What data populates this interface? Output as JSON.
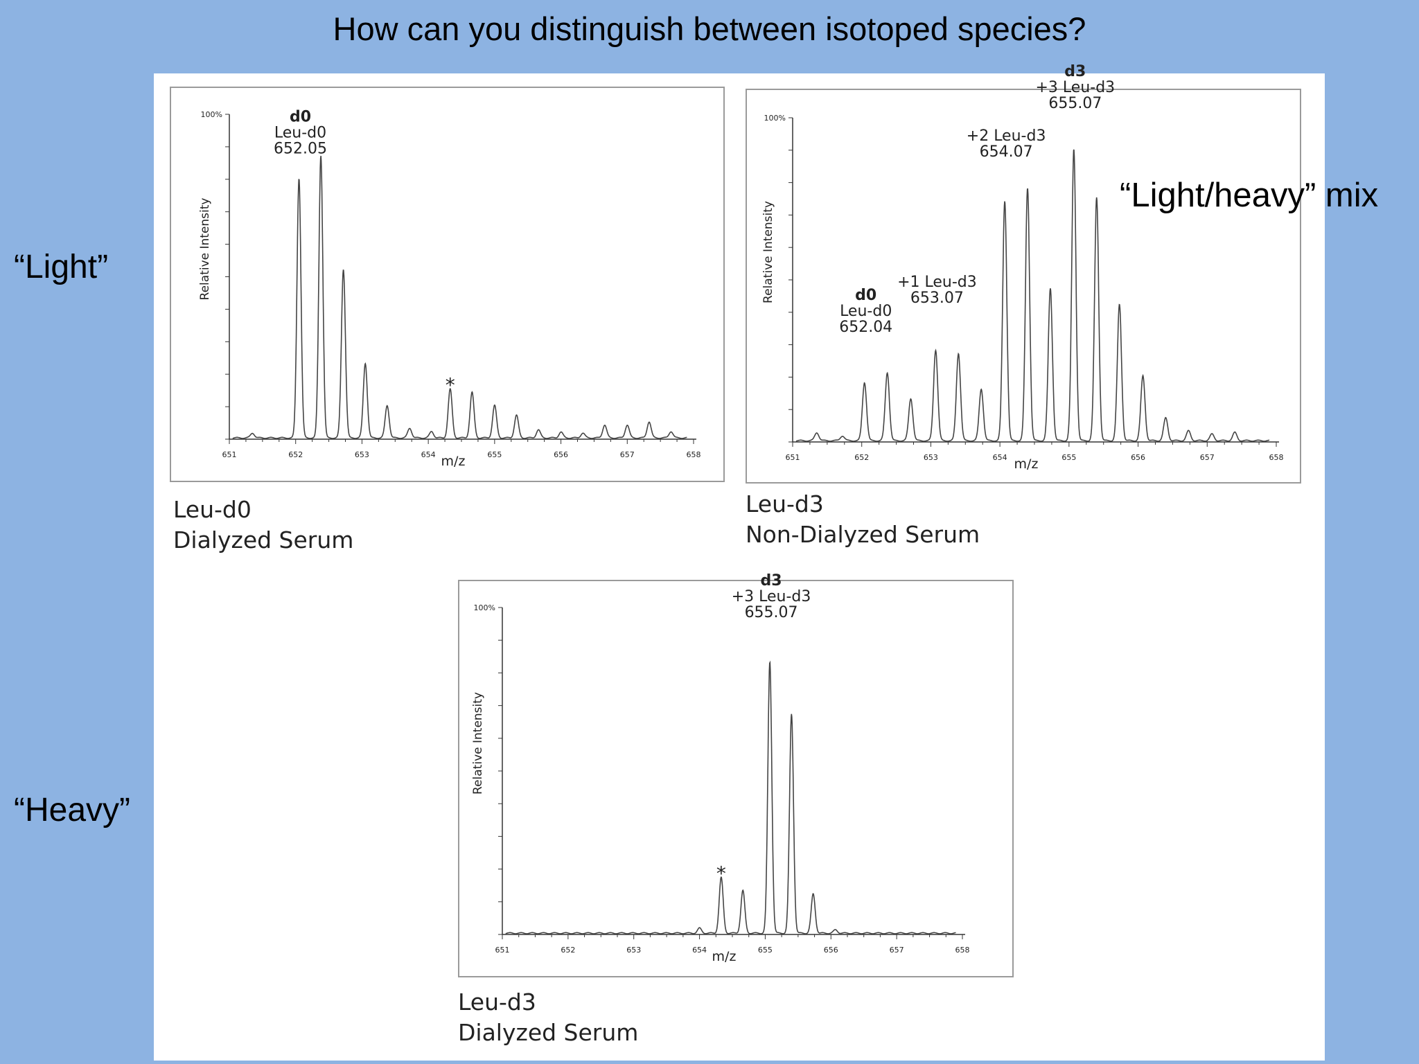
{
  "slide": {
    "title": "How can you distinguish between isotoped species?",
    "label_light": "“Light”",
    "label_heavy": "“Heavy”",
    "label_mix": "“Light/heavy” mix"
  },
  "chart_data": [
    {
      "type": "line",
      "caption_line1": "Leu-d0",
      "caption_line2": "Dialyzed Serum",
      "xlabel": "m/z",
      "ylabel": "Relative Intensity",
      "y_top_label": "100%",
      "xlim": [
        651,
        658
      ],
      "ylim": [
        0,
        100
      ],
      "x_ticks": [
        "651",
        "652",
        "653",
        "654",
        "655",
        "656",
        "657",
        "658"
      ],
      "peaks": [
        {
          "x": 651.35,
          "y": 1.5
        },
        {
          "x": 652.05,
          "y": 80
        },
        {
          "x": 652.38,
          "y": 87
        },
        {
          "x": 652.72,
          "y": 52
        },
        {
          "x": 653.05,
          "y": 23
        },
        {
          "x": 653.38,
          "y": 10
        },
        {
          "x": 653.72,
          "y": 3
        },
        {
          "x": 654.05,
          "y": 2
        },
        {
          "x": 654.33,
          "y": 15
        },
        {
          "x": 654.66,
          "y": 14
        },
        {
          "x": 655.0,
          "y": 10
        },
        {
          "x": 655.33,
          "y": 7
        },
        {
          "x": 655.66,
          "y": 2.5
        },
        {
          "x": 656.0,
          "y": 1.8
        },
        {
          "x": 656.33,
          "y": 1.5
        },
        {
          "x": 656.66,
          "y": 4
        },
        {
          "x": 657.0,
          "y": 4
        },
        {
          "x": 657.33,
          "y": 5
        },
        {
          "x": 657.66,
          "y": 2
        }
      ],
      "annotations": [
        {
          "x": 652.05,
          "y": 88,
          "lines": [
            "d0",
            "Leu-d0",
            "652.05"
          ]
        },
        {
          "x": 654.33,
          "y": 18,
          "lines": [
            "*"
          ]
        }
      ]
    },
    {
      "type": "line",
      "caption_line1": "Leu-d3",
      "caption_line2": "Non-Dialyzed Serum",
      "xlabel": "m/z",
      "ylabel": "Relative Intensity",
      "y_top_label": "100%",
      "xlim": [
        651,
        658
      ],
      "ylim": [
        0,
        100
      ],
      "x_ticks": [
        "651",
        "652",
        "653",
        "654",
        "655",
        "656",
        "657",
        "658"
      ],
      "peaks": [
        {
          "x": 651.35,
          "y": 2.5
        },
        {
          "x": 651.72,
          "y": 1.5
        },
        {
          "x": 652.04,
          "y": 18
        },
        {
          "x": 652.37,
          "y": 21
        },
        {
          "x": 652.71,
          "y": 13
        },
        {
          "x": 653.07,
          "y": 28
        },
        {
          "x": 653.4,
          "y": 27
        },
        {
          "x": 653.73,
          "y": 16
        },
        {
          "x": 654.07,
          "y": 74
        },
        {
          "x": 654.4,
          "y": 78
        },
        {
          "x": 654.73,
          "y": 47
        },
        {
          "x": 655.07,
          "y": 90
        },
        {
          "x": 655.4,
          "y": 75
        },
        {
          "x": 655.73,
          "y": 42
        },
        {
          "x": 656.07,
          "y": 20
        },
        {
          "x": 656.4,
          "y": 7
        },
        {
          "x": 656.73,
          "y": 3
        },
        {
          "x": 657.07,
          "y": 2
        },
        {
          "x": 657.4,
          "y": 2.5
        }
      ],
      "annotations": [
        {
          "x": 652.04,
          "y": 34,
          "lines": [
            "d0",
            "Leu-d0",
            "652.04"
          ]
        },
        {
          "x": 653.07,
          "y": 43,
          "lines": [
            "+1 Leu-d3",
            "653.07"
          ]
        },
        {
          "x": 654.07,
          "y": 88,
          "lines": [
            "+2 Leu-d3",
            "654.07"
          ]
        },
        {
          "x": 655.07,
          "y": 103,
          "lines": [
            "d3",
            "+3 Leu-d3",
            "655.07"
          ]
        }
      ]
    },
    {
      "type": "line",
      "caption_line1": "Leu-d3",
      "caption_line2": "Dialyzed Serum",
      "xlabel": "m/z",
      "ylabel": "Relative Intensity",
      "y_top_label": "100%",
      "xlim": [
        651,
        658
      ],
      "ylim": [
        0,
        100
      ],
      "x_ticks": [
        "651",
        "652",
        "653",
        "654",
        "655",
        "656",
        "657",
        "658"
      ],
      "peaks": [
        {
          "x": 654.0,
          "y": 1.5
        },
        {
          "x": 654.33,
          "y": 17
        },
        {
          "x": 654.66,
          "y": 13
        },
        {
          "x": 655.07,
          "y": 83
        },
        {
          "x": 655.4,
          "y": 67
        },
        {
          "x": 655.73,
          "y": 12
        },
        {
          "x": 656.07,
          "y": 1
        }
      ],
      "annotations": [
        {
          "x": 655.07,
          "y": 97,
          "lines": [
            "d3",
            "+3 Leu-d3",
            "655.07"
          ]
        },
        {
          "x": 654.33,
          "y": 20,
          "lines": [
            "*"
          ]
        }
      ]
    }
  ]
}
